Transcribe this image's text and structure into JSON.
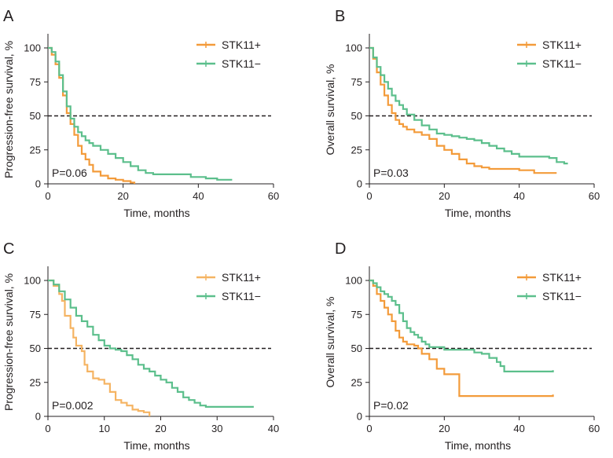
{
  "chart_data": [
    {
      "type": "line",
      "panel_label": "A",
      "xlabel": "Time, months",
      "ylabel": "Progression-free survival, %",
      "xlim": [
        0,
        60
      ],
      "ylim": [
        0,
        100
      ],
      "xticks": [
        0,
        20,
        40,
        60
      ],
      "yticks": [
        0,
        25,
        50,
        75,
        100
      ],
      "reference_line_y": 50,
      "p_value": "P=0.06",
      "legend_position": "top-right",
      "series": [
        {
          "name": "STK11+",
          "color": "#f39b3a",
          "points": [
            [
              0,
              100
            ],
            [
              1,
              95
            ],
            [
              2,
              88
            ],
            [
              3,
              78
            ],
            [
              4,
              65
            ],
            [
              5,
              52
            ],
            [
              6,
              44
            ],
            [
              7,
              36
            ],
            [
              8,
              28
            ],
            [
              9,
              22
            ],
            [
              10,
              18
            ],
            [
              11,
              14
            ],
            [
              12,
              9
            ],
            [
              14,
              6
            ],
            [
              16,
              4
            ],
            [
              18,
              3
            ],
            [
              20,
              2
            ],
            [
              22,
              1
            ],
            [
              23,
              0
            ]
          ]
        },
        {
          "name": "STK11−",
          "color": "#5cbf8c",
          "points": [
            [
              0,
              100
            ],
            [
              1,
              97
            ],
            [
              2,
              90
            ],
            [
              3,
              80
            ],
            [
              4,
              68
            ],
            [
              5,
              57
            ],
            [
              6,
              48
            ],
            [
              7,
              42
            ],
            [
              8,
              38
            ],
            [
              9,
              35
            ],
            [
              10,
              32
            ],
            [
              11,
              30
            ],
            [
              12,
              28
            ],
            [
              14,
              25
            ],
            [
              16,
              22
            ],
            [
              18,
              19
            ],
            [
              20,
              16
            ],
            [
              22,
              13
            ],
            [
              24,
              10
            ],
            [
              26,
              8
            ],
            [
              28,
              7
            ],
            [
              30,
              7
            ],
            [
              34,
              7
            ],
            [
              38,
              5
            ],
            [
              42,
              4
            ],
            [
              45,
              3
            ],
            [
              48,
              3
            ],
            [
              49,
              3
            ]
          ]
        }
      ]
    },
    {
      "type": "line",
      "panel_label": "B",
      "xlabel": "Time, months",
      "ylabel": "Overall survival, %",
      "xlim": [
        0,
        60
      ],
      "ylim": [
        0,
        100
      ],
      "xticks": [
        0,
        20,
        40,
        60
      ],
      "yticks": [
        0,
        25,
        50,
        75,
        100
      ],
      "reference_line_y": 50,
      "p_value": "P=0.03",
      "legend_position": "top-right",
      "series": [
        {
          "name": "STK11+",
          "color": "#f39b3a",
          "points": [
            [
              0,
              100
            ],
            [
              1,
              92
            ],
            [
              2,
              82
            ],
            [
              3,
              73
            ],
            [
              4,
              65
            ],
            [
              5,
              58
            ],
            [
              6,
              52
            ],
            [
              7,
              47
            ],
            [
              8,
              44
            ],
            [
              9,
              42
            ],
            [
              10,
              40
            ],
            [
              12,
              38
            ],
            [
              14,
              36
            ],
            [
              16,
              33
            ],
            [
              18,
              28
            ],
            [
              20,
              25
            ],
            [
              22,
              22
            ],
            [
              24,
              18
            ],
            [
              26,
              15
            ],
            [
              28,
              13
            ],
            [
              30,
              12
            ],
            [
              32,
              11
            ],
            [
              36,
              11
            ],
            [
              40,
              10
            ],
            [
              42,
              10
            ],
            [
              44,
              8
            ],
            [
              46,
              8
            ],
            [
              48,
              8
            ],
            [
              50,
              8
            ]
          ]
        },
        {
          "name": "STK11−",
          "color": "#5cbf8c",
          "points": [
            [
              0,
              100
            ],
            [
              1,
              93
            ],
            [
              2,
              86
            ],
            [
              3,
              80
            ],
            [
              4,
              75
            ],
            [
              5,
              70
            ],
            [
              6,
              65
            ],
            [
              7,
              61
            ],
            [
              8,
              58
            ],
            [
              9,
              55
            ],
            [
              10,
              51
            ],
            [
              12,
              47
            ],
            [
              14,
              43
            ],
            [
              16,
              40
            ],
            [
              18,
              37
            ],
            [
              20,
              36
            ],
            [
              22,
              35
            ],
            [
              24,
              34
            ],
            [
              26,
              33
            ],
            [
              28,
              32
            ],
            [
              30,
              30
            ],
            [
              32,
              28
            ],
            [
              34,
              26
            ],
            [
              36,
              24
            ],
            [
              38,
              22
            ],
            [
              40,
              20
            ],
            [
              44,
              20
            ],
            [
              48,
              19
            ],
            [
              50,
              16
            ],
            [
              52,
              15
            ],
            [
              53,
              15
            ]
          ]
        }
      ]
    },
    {
      "type": "line",
      "panel_label": "C",
      "xlabel": "Time, months",
      "ylabel": "Progression-free survival, %",
      "xlim": [
        0,
        40
      ],
      "ylim": [
        0,
        100
      ],
      "xticks": [
        0,
        10,
        20,
        30,
        40
      ],
      "yticks": [
        0,
        25,
        50,
        75,
        100
      ],
      "reference_line_y": 50,
      "p_value": "P=0.002",
      "legend_position": "top-right",
      "series": [
        {
          "name": "STK11+",
          "color": "#f5b463",
          "points": [
            [
              0,
              100
            ],
            [
              1,
              96
            ],
            [
              2,
              90
            ],
            [
              2.5,
              85
            ],
            [
              3,
              74
            ],
            [
              4,
              65
            ],
            [
              4.5,
              58
            ],
            [
              5,
              52
            ],
            [
              6,
              48
            ],
            [
              6.5,
              38
            ],
            [
              7,
              33
            ],
            [
              8,
              28
            ],
            [
              9,
              27
            ],
            [
              10,
              24
            ],
            [
              11,
              18
            ],
            [
              12,
              12
            ],
            [
              13,
              10
            ],
            [
              14,
              8
            ],
            [
              15,
              5
            ],
            [
              16,
              4
            ],
            [
              17,
              3
            ],
            [
              18,
              0
            ]
          ]
        },
        {
          "name": "STK11−",
          "color": "#5cbf8c",
          "points": [
            [
              0,
              100
            ],
            [
              1,
              97
            ],
            [
              2,
              92
            ],
            [
              3,
              86
            ],
            [
              4,
              80
            ],
            [
              5,
              74
            ],
            [
              6,
              70
            ],
            [
              7,
              66
            ],
            [
              8,
              60
            ],
            [
              9,
              56
            ],
            [
              10,
              52
            ],
            [
              11,
              50
            ],
            [
              12,
              49
            ],
            [
              13,
              48
            ],
            [
              14,
              45
            ],
            [
              15,
              42
            ],
            [
              16,
              38
            ],
            [
              17,
              35
            ],
            [
              18,
              33
            ],
            [
              19,
              30
            ],
            [
              20,
              27
            ],
            [
              21,
              25
            ],
            [
              22,
              21
            ],
            [
              23,
              18
            ],
            [
              24,
              14
            ],
            [
              25,
              12
            ],
            [
              26,
              10
            ],
            [
              27,
              8
            ],
            [
              28,
              7
            ],
            [
              30,
              7
            ],
            [
              34,
              7
            ],
            [
              36.5,
              7
            ]
          ]
        }
      ]
    },
    {
      "type": "line",
      "panel_label": "D",
      "xlabel": "Time, months",
      "ylabel": "Overall survival, %",
      "xlim": [
        0,
        60
      ],
      "ylim": [
        0,
        100
      ],
      "xticks": [
        0,
        20,
        40,
        60
      ],
      "yticks": [
        0,
        25,
        50,
        75,
        100
      ],
      "reference_line_y": 50,
      "p_value": "P=0.02",
      "legend_position": "top-right",
      "series": [
        {
          "name": "STK11+",
          "color": "#f39b3a",
          "points": [
            [
              0,
              100
            ],
            [
              1,
              96
            ],
            [
              2,
              90
            ],
            [
              3,
              85
            ],
            [
              4,
              80
            ],
            [
              5,
              75
            ],
            [
              6,
              70
            ],
            [
              7,
              63
            ],
            [
              8,
              58
            ],
            [
              9,
              55
            ],
            [
              10,
              53
            ],
            [
              12,
              52
            ],
            [
              13,
              50
            ],
            [
              14,
              46
            ],
            [
              16,
              42
            ],
            [
              18,
              35
            ],
            [
              20,
              31
            ],
            [
              22,
              31
            ],
            [
              23,
              31
            ],
            [
              24,
              15
            ],
            [
              30,
              15
            ],
            [
              40,
              15
            ],
            [
              49,
              16
            ]
          ]
        },
        {
          "name": "STK11−",
          "color": "#5cbf8c",
          "points": [
            [
              0,
              100
            ],
            [
              1,
              98
            ],
            [
              2,
              95
            ],
            [
              3,
              92
            ],
            [
              4,
              90
            ],
            [
              5,
              88
            ],
            [
              6,
              85
            ],
            [
              7,
              82
            ],
            [
              8,
              76
            ],
            [
              9,
              70
            ],
            [
              10,
              65
            ],
            [
              11,
              62
            ],
            [
              12,
              60
            ],
            [
              13,
              58
            ],
            [
              14,
              55
            ],
            [
              15,
              53
            ],
            [
              16,
              51
            ],
            [
              18,
              51
            ],
            [
              20,
              49
            ],
            [
              22,
              49
            ],
            [
              26,
              49
            ],
            [
              28,
              47
            ],
            [
              30,
              46
            ],
            [
              32,
              43
            ],
            [
              34,
              40
            ],
            [
              35,
              37
            ],
            [
              36,
              33
            ],
            [
              40,
              33
            ],
            [
              44,
              33
            ],
            [
              49,
              34
            ]
          ]
        }
      ]
    }
  ]
}
